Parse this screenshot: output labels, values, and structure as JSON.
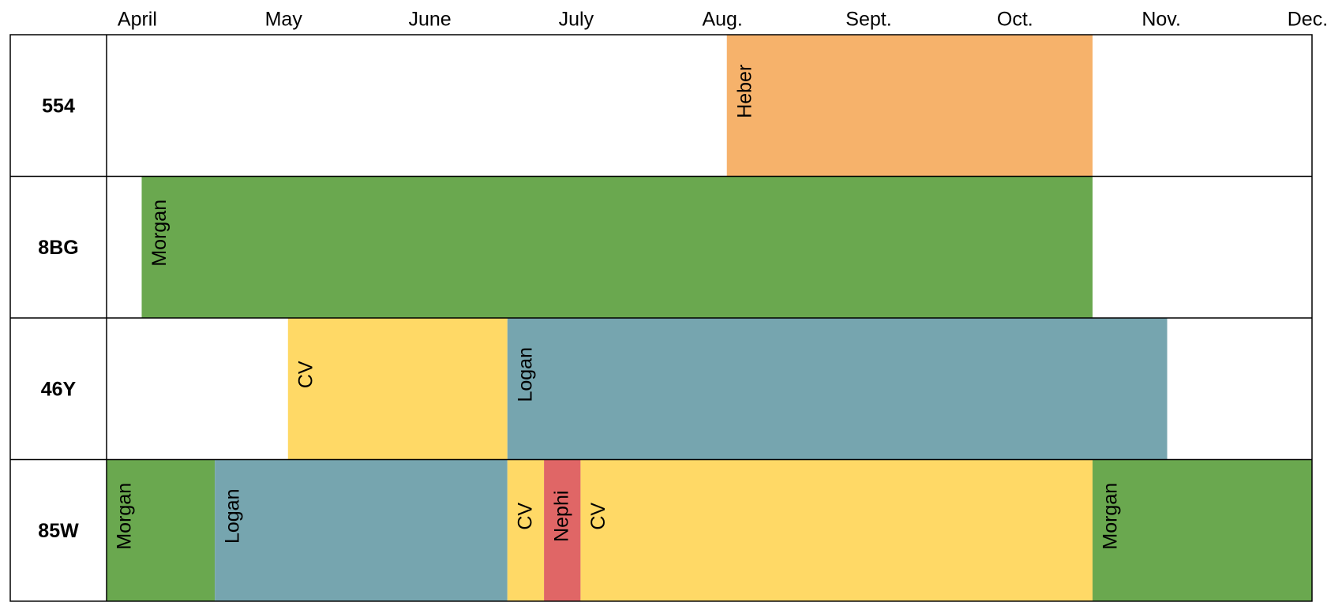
{
  "chart_data": {
    "type": "timeline",
    "xlim": [
      -0.21,
      8.03
    ],
    "xticks": [
      {
        "value": 0,
        "label": "April"
      },
      {
        "value": 1,
        "label": "May"
      },
      {
        "value": 2,
        "label": "June"
      },
      {
        "value": 3,
        "label": "July"
      },
      {
        "value": 4,
        "label": "Aug."
      },
      {
        "value": 5,
        "label": "Sept."
      },
      {
        "value": 6,
        "label": "Oct."
      },
      {
        "value": 7,
        "label": "Nov."
      },
      {
        "value": 8,
        "label": "Dec."
      }
    ],
    "rows": [
      {
        "label": "554",
        "tasks": [
          {
            "name": "Heber",
            "start": 4.03,
            "end": 6.53,
            "color": "#f6b26b"
          }
        ]
      },
      {
        "label": "8BG",
        "tasks": [
          {
            "name": "Morgan",
            "start": 0.03,
            "end": 6.53,
            "color": "#6aa84f"
          }
        ]
      },
      {
        "label": "46Y",
        "tasks": [
          {
            "name": "CV",
            "start": 1.03,
            "end": 2.53,
            "color": "#ffd966"
          },
          {
            "name": "Logan",
            "start": 2.53,
            "end": 7.04,
            "color": "#76a5af"
          }
        ]
      },
      {
        "label": "85W",
        "tasks": [
          {
            "name": "Morgan",
            "start": -0.21,
            "end": 0.53,
            "color": "#6aa84f"
          },
          {
            "name": "Logan",
            "start": 0.53,
            "end": 2.53,
            "color": "#76a5af"
          },
          {
            "name": "CV",
            "start": 2.53,
            "end": 2.78,
            "color": "#ffd966"
          },
          {
            "name": "Nephi",
            "start": 2.78,
            "end": 3.03,
            "color": "#e06666"
          },
          {
            "name": "CV",
            "start": 3.03,
            "end": 6.53,
            "color": "#ffd966"
          },
          {
            "name": "Morgan",
            "start": 6.53,
            "end": 8.03,
            "color": "#6aa84f"
          }
        ]
      }
    ]
  }
}
